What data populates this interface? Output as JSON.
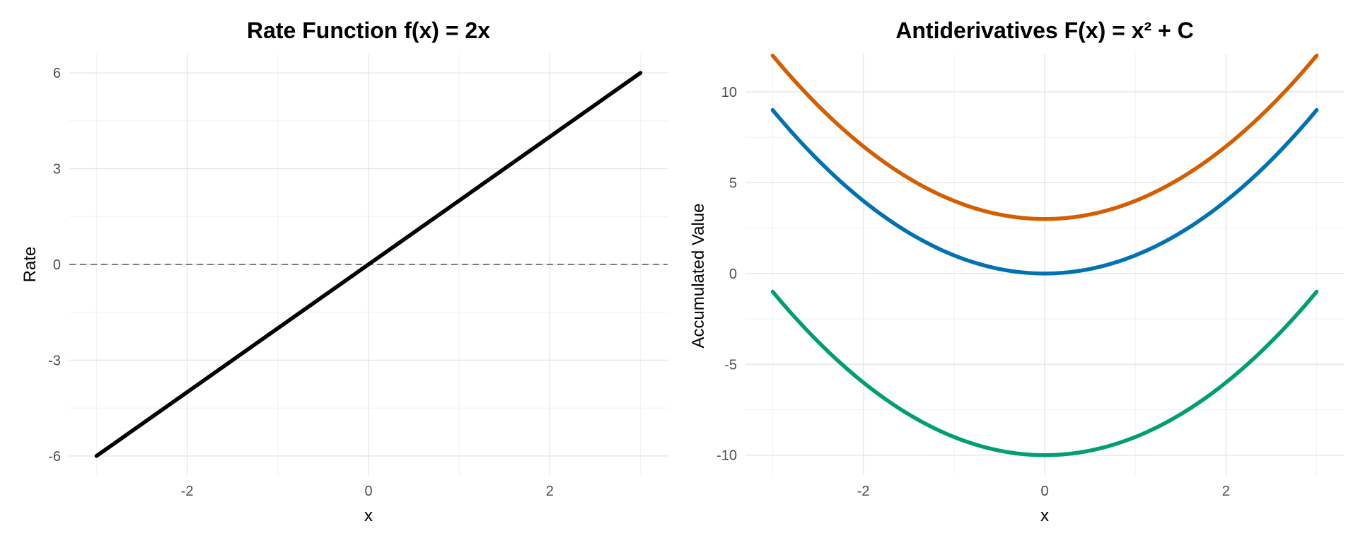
{
  "chart_data": [
    {
      "type": "line",
      "title": "Rate Function  f(x) = 2x",
      "xlabel": "x",
      "ylabel": "Rate",
      "xlim": [
        -3.3,
        3.3
      ],
      "ylim": [
        -6.6,
        6.6
      ],
      "x_ticks": [
        -2,
        0,
        2
      ],
      "x_tick_labels": [
        "-2",
        "0",
        "2"
      ],
      "y_ticks": [
        -6,
        -3,
        0,
        3,
        6
      ],
      "y_tick_labels": [
        "-6",
        "-3",
        "0",
        "3",
        "6"
      ],
      "grid": true,
      "reference_line": {
        "y": 0,
        "style": "dashed",
        "color": "#555555"
      },
      "series": [
        {
          "color": "#000000",
          "x": [
            -3,
            -2,
            -1,
            0,
            1,
            2,
            3
          ],
          "y": [
            -6,
            -4,
            -2,
            0,
            2,
            4,
            6
          ]
        }
      ]
    },
    {
      "type": "line",
      "title": "Antiderivatives  F(x) = x² + C",
      "xlabel": "x",
      "ylabel": "Accumulated Value",
      "xlim": [
        -3.3,
        3.3
      ],
      "ylim": [
        -11.1,
        12.1
      ],
      "x_ticks": [
        -2,
        0,
        2
      ],
      "x_tick_labels": [
        "-2",
        "0",
        "2"
      ],
      "y_ticks": [
        -10,
        -5,
        0,
        5,
        10
      ],
      "y_tick_labels": [
        "-10",
        "-5",
        "0",
        "5",
        "10"
      ],
      "grid": true,
      "series": [
        {
          "color": "#D55E00",
          "x": [
            -3,
            -2.5,
            -2,
            -1.5,
            -1,
            -0.5,
            0,
            0.5,
            1,
            1.5,
            2,
            2.5,
            3
          ],
          "y": [
            12,
            9.25,
            7,
            5.25,
            4,
            3.25,
            3,
            3.25,
            4,
            5.25,
            7,
            9.25,
            12
          ]
        },
        {
          "color": "#0072B2",
          "x": [
            -3,
            -2.5,
            -2,
            -1.5,
            -1,
            -0.5,
            0,
            0.5,
            1,
            1.5,
            2,
            2.5,
            3
          ],
          "y": [
            9,
            6.25,
            4,
            2.25,
            1,
            0.25,
            0,
            0.25,
            1,
            2.25,
            4,
            6.25,
            9
          ]
        },
        {
          "color": "#009E73",
          "x": [
            -3,
            -2.5,
            -2,
            -1.5,
            -1,
            -0.5,
            0,
            0.5,
            1,
            1.5,
            2,
            2.5,
            3
          ],
          "y": [
            -1,
            -3.75,
            -6,
            -7.75,
            -9,
            -9.75,
            -10,
            -9.75,
            -9,
            -7.75,
            -6,
            -3.75,
            -1
          ]
        }
      ]
    }
  ]
}
